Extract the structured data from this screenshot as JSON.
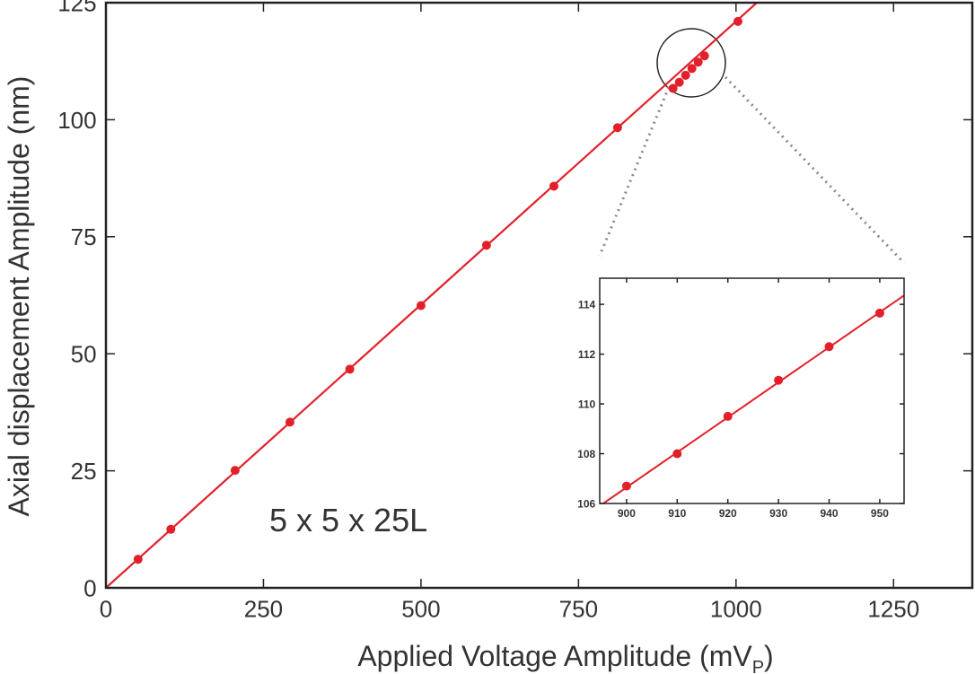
{
  "chart_data": [
    {
      "type": "scatter-line",
      "xlabel": [
        "Applied Voltage Amplitude (mV",
        "P",
        ")"
      ],
      "ylabel": "Axial displacement Amplitude (nm)",
      "annotation": "5 x 5 x 25L",
      "color": "#e3202a",
      "xlim": [
        0,
        1375
      ],
      "ylim": [
        0,
        125
      ],
      "xticks": [
        0,
        250,
        500,
        750,
        1000,
        1250
      ],
      "yticks": [
        0,
        25,
        50,
        75,
        100,
        125
      ],
      "x": [
        51,
        103,
        205,
        292,
        387,
        500,
        604,
        711,
        812,
        900,
        910,
        920,
        930,
        940,
        950,
        1003
      ],
      "values": [
        6.1,
        12.5,
        25.1,
        35.4,
        46.7,
        60.3,
        73.2,
        85.8,
        98.3,
        106.7,
        108.0,
        109.5,
        110.95,
        112.3,
        113.65,
        121
      ],
      "fit_line": {
        "x": [
          0,
          1033
        ],
        "values": [
          0,
          125
        ]
      }
    },
    {
      "type": "scatter-line",
      "color": "#e3202a",
      "xlim": [
        894.7,
        954.8
      ],
      "ylim": [
        106,
        115.05
      ],
      "xticks": [
        900,
        910,
        920,
        930,
        940,
        950
      ],
      "yticks": [
        106,
        108,
        110,
        112,
        114
      ],
      "x": [
        900,
        910,
        920,
        930,
        940,
        950
      ],
      "values": [
        106.7,
        108.0,
        109.5,
        110.95,
        112.3,
        113.65
      ],
      "fit_line": {
        "x": [
          895.4,
          954.8
        ],
        "values": [
          106.0,
          114.36
        ]
      }
    }
  ]
}
